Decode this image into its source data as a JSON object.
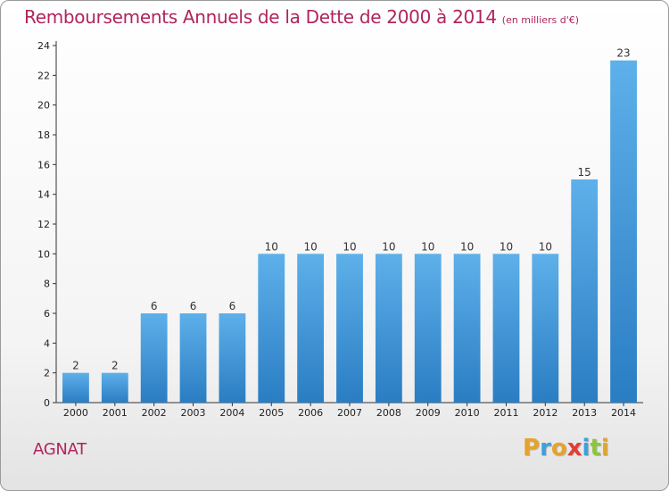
{
  "header": {
    "title": "Remboursements Annuels de la Dette de 2000 à 2014",
    "unit": "(en milliers d'€)"
  },
  "footer": {
    "place": "AGNAT",
    "brand_letters": [
      "P",
      "r",
      "o",
      "x",
      "i",
      "t",
      "i"
    ],
    "brand_colors": [
      "#e5a32a",
      "#3ea0dc",
      "#e5a32a",
      "#e23e36",
      "#3ea0dc",
      "#8cc43f",
      "#e5a32a"
    ]
  },
  "chart_data": {
    "type": "bar",
    "categories": [
      "2000",
      "2001",
      "2002",
      "2003",
      "2004",
      "2005",
      "2006",
      "2007",
      "2008",
      "2009",
      "2010",
      "2011",
      "2012",
      "2013",
      "2014"
    ],
    "values": [
      2,
      2,
      6,
      6,
      6,
      10,
      10,
      10,
      10,
      10,
      10,
      10,
      10,
      15,
      23
    ],
    "data_labels": [
      "2",
      "2",
      "6",
      "6",
      "6",
      "10",
      "10",
      "10",
      "10",
      "10",
      "10",
      "10",
      "10",
      "15",
      "23"
    ],
    "title": "Remboursements Annuels de la Dette de 2000 à 2014",
    "xlabel": "",
    "ylabel": "",
    "ylim": [
      0,
      24
    ],
    "yticks": [
      0,
      2,
      4,
      6,
      8,
      10,
      12,
      14,
      16,
      18,
      20,
      22,
      24
    ],
    "grid": false,
    "bar_color": "#3a93d8"
  }
}
